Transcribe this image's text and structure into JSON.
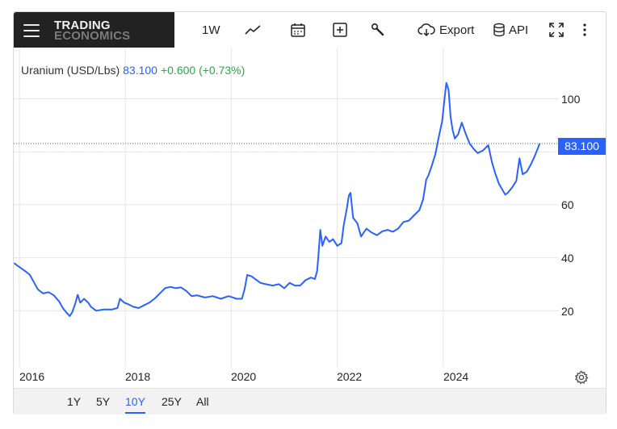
{
  "brand": {
    "line1": "TRADING",
    "line2": "ECONOMICS"
  },
  "toolbar": {
    "interval_label": "1W",
    "export_label": "Export",
    "api_label": "API",
    "icons": [
      "menu-icon",
      "line-chart-icon",
      "calendar-icon",
      "plus-box-icon",
      "wrench-icon",
      "cloud-download-icon",
      "database-icon",
      "fullscreen-icon",
      "more-vertical-icon"
    ]
  },
  "legend": {
    "name": "Uranium (USD/Lbs)",
    "price": "83.100",
    "change": "+0.600 (+0.73%)"
  },
  "price_badge": "83.100",
  "colors": {
    "line": "#2962ff",
    "badge": "#2962ff",
    "change": "#2ba84a",
    "logo_bg": "#222222"
  },
  "ranges": {
    "items": [
      "1Y",
      "5Y",
      "10Y",
      "25Y",
      "All"
    ],
    "active": "10Y"
  },
  "chart_data": {
    "type": "line",
    "title": "Uranium (USD/Lbs)",
    "xlabel": "",
    "ylabel": "",
    "x_ticks": [
      "2016",
      "2018",
      "2020",
      "2022",
      "2024"
    ],
    "y_ticks": [
      "20",
      "40",
      "60",
      "100"
    ],
    "ylim": [
      0,
      112
    ],
    "xlim": [
      2015.88,
      2026.05
    ],
    "grid": true,
    "last_value": 83.1,
    "series": [
      {
        "name": "",
        "points": [
          [
            2015.9,
            38.0
          ],
          [
            2015.95,
            37.2
          ],
          [
            2016.0,
            36.5
          ],
          [
            2016.05,
            35.8
          ],
          [
            2016.12,
            34.8
          ],
          [
            2016.2,
            33.5
          ],
          [
            2016.28,
            30.5
          ],
          [
            2016.35,
            28.0
          ],
          [
            2016.45,
            26.5
          ],
          [
            2016.55,
            27.0
          ],
          [
            2016.65,
            25.8
          ],
          [
            2016.75,
            23.5
          ],
          [
            2016.82,
            21.0
          ],
          [
            2016.88,
            19.5
          ],
          [
            2016.95,
            18.0
          ],
          [
            2017.0,
            19.5
          ],
          [
            2017.06,
            23.0
          ],
          [
            2017.1,
            26.0
          ],
          [
            2017.15,
            23.0
          ],
          [
            2017.22,
            24.5
          ],
          [
            2017.3,
            23.0
          ],
          [
            2017.35,
            21.5
          ],
          [
            2017.45,
            20.0
          ],
          [
            2017.6,
            20.5
          ],
          [
            2017.75,
            20.5
          ],
          [
            2017.85,
            21.0
          ],
          [
            2017.9,
            24.5
          ],
          [
            2017.98,
            23.0
          ],
          [
            2018.05,
            22.5
          ],
          [
            2018.15,
            21.5
          ],
          [
            2018.25,
            21.0
          ],
          [
            2018.35,
            22.0
          ],
          [
            2018.45,
            23.0
          ],
          [
            2018.55,
            24.5
          ],
          [
            2018.65,
            26.5
          ],
          [
            2018.75,
            28.5
          ],
          [
            2018.85,
            29.0
          ],
          [
            2018.95,
            28.5
          ],
          [
            2019.05,
            28.8
          ],
          [
            2019.15,
            27.5
          ],
          [
            2019.25,
            25.5
          ],
          [
            2019.35,
            25.8
          ],
          [
            2019.5,
            25.0
          ],
          [
            2019.65,
            25.5
          ],
          [
            2019.8,
            24.5
          ],
          [
            2019.95,
            25.5
          ],
          [
            2020.1,
            24.5
          ],
          [
            2020.2,
            24.5
          ],
          [
            2020.25,
            28.0
          ],
          [
            2020.3,
            33.5
          ],
          [
            2020.38,
            33.0
          ],
          [
            2020.45,
            32.0
          ],
          [
            2020.55,
            30.5
          ],
          [
            2020.65,
            30.0
          ],
          [
            2020.78,
            29.5
          ],
          [
            2020.9,
            30.0
          ],
          [
            2021.0,
            28.5
          ],
          [
            2021.1,
            30.5
          ],
          [
            2021.2,
            29.5
          ],
          [
            2021.3,
            29.5
          ],
          [
            2021.4,
            31.5
          ],
          [
            2021.5,
            32.5
          ],
          [
            2021.58,
            32.0
          ],
          [
            2021.62,
            35.0
          ],
          [
            2021.65,
            42.0
          ],
          [
            2021.68,
            50.5
          ],
          [
            2021.72,
            44.5
          ],
          [
            2021.78,
            48.0
          ],
          [
            2021.85,
            46.0
          ],
          [
            2021.92,
            47.0
          ],
          [
            2022.0,
            44.5
          ],
          [
            2022.08,
            45.5
          ],
          [
            2022.12,
            52.0
          ],
          [
            2022.18,
            58.5
          ],
          [
            2022.22,
            63.5
          ],
          [
            2022.25,
            64.5
          ],
          [
            2022.3,
            55.0
          ],
          [
            2022.38,
            53.0
          ],
          [
            2022.45,
            48.0
          ],
          [
            2022.55,
            51.0
          ],
          [
            2022.65,
            49.5
          ],
          [
            2022.75,
            48.5
          ],
          [
            2022.85,
            50.0
          ],
          [
            2022.95,
            50.5
          ],
          [
            2023.05,
            49.8
          ],
          [
            2023.15,
            51.0
          ],
          [
            2023.25,
            53.5
          ],
          [
            2023.35,
            54.0
          ],
          [
            2023.45,
            56.0
          ],
          [
            2023.55,
            58.0
          ],
          [
            2023.62,
            62.0
          ],
          [
            2023.68,
            69.5
          ],
          [
            2023.72,
            71.0
          ],
          [
            2023.78,
            74.5
          ],
          [
            2023.85,
            79.0
          ],
          [
            2023.92,
            86.0
          ],
          [
            2023.98,
            91.5
          ],
          [
            2024.03,
            101.0
          ],
          [
            2024.06,
            106.0
          ],
          [
            2024.1,
            103.5
          ],
          [
            2024.14,
            93.0
          ],
          [
            2024.18,
            88.0
          ],
          [
            2024.22,
            85.0
          ],
          [
            2024.28,
            86.5
          ],
          [
            2024.35,
            91.0
          ],
          [
            2024.42,
            87.0
          ],
          [
            2024.5,
            83.0
          ],
          [
            2024.58,
            81.0
          ],
          [
            2024.65,
            79.5
          ],
          [
            2024.75,
            80.5
          ],
          [
            2024.85,
            82.5
          ],
          [
            2024.92,
            76.0
          ],
          [
            2024.98,
            72.0
          ],
          [
            2025.05,
            68.0
          ],
          [
            2025.12,
            65.5
          ],
          [
            2025.17,
            63.8
          ],
          [
            2025.22,
            64.5
          ],
          [
            2025.3,
            66.5
          ],
          [
            2025.38,
            69.0
          ],
          [
            2025.44,
            77.5
          ],
          [
            2025.5,
            71.5
          ],
          [
            2025.58,
            72.5
          ],
          [
            2025.65,
            75.0
          ],
          [
            2025.72,
            78.0
          ],
          [
            2025.78,
            81.0
          ],
          [
            2025.82,
            83.1
          ]
        ]
      }
    ]
  }
}
